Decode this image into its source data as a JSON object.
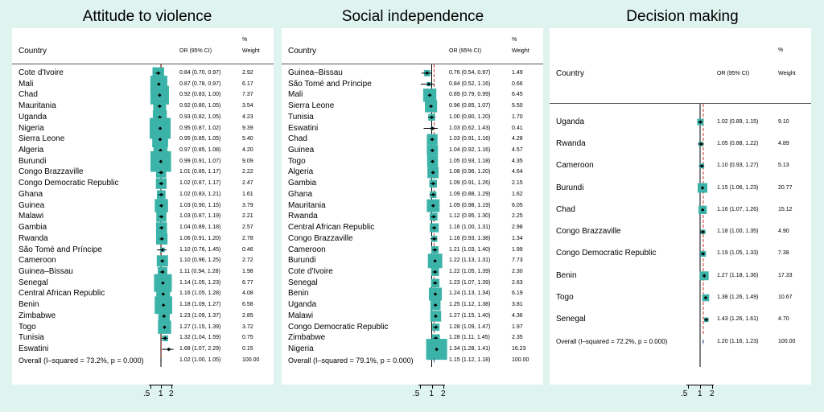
{
  "chart_data": [
    {
      "type": "forest",
      "title": "Attitude to violence",
      "headers": {
        "country": "Country",
        "or": "OR (95% CI)",
        "pct": "%",
        "weight": "Weight"
      },
      "axis": {
        "ticks": [
          ".5",
          "1",
          "2"
        ]
      },
      "rows": [
        {
          "country": "Cote d'Ivoire",
          "or": 0.84,
          "lo": 0.7,
          "hi": 0.97,
          "ci": "0.84 (0.70, 0.97)",
          "weight": "2.92"
        },
        {
          "country": "Mali",
          "or": 0.87,
          "lo": 0.78,
          "hi": 0.97,
          "ci": "0.87 (0.78, 0.97)",
          "weight": "6.17"
        },
        {
          "country": "Chad",
          "or": 0.92,
          "lo": 0.83,
          "hi": 1.0,
          "ci": "0.92 (0.83, 1.00)",
          "weight": "7.37"
        },
        {
          "country": "Mauritania",
          "or": 0.92,
          "lo": 0.8,
          "hi": 1.05,
          "ci": "0.92 (0.80, 1.05)",
          "weight": "3.54"
        },
        {
          "country": "Uganda",
          "or": 0.93,
          "lo": 0.82,
          "hi": 1.05,
          "ci": "0.93 (0.82, 1.05)",
          "weight": "4.23"
        },
        {
          "country": "Nigeria",
          "or": 0.95,
          "lo": 0.87,
          "hi": 1.02,
          "ci": "0.95 (0.87, 1.02)",
          "weight": "9.39"
        },
        {
          "country": "Sierra Leone",
          "or": 0.95,
          "lo": 0.85,
          "hi": 1.05,
          "ci": "0.95 (0.85, 1.05)",
          "weight": "5.40"
        },
        {
          "country": "Algeria",
          "or": 0.97,
          "lo": 0.85,
          "hi": 1.08,
          "ci": "0.97 (0.85, 1.08)",
          "weight": "4.20"
        },
        {
          "country": "Burundi",
          "or": 0.99,
          "lo": 0.91,
          "hi": 1.07,
          "ci": "0.99 (0.91, 1.07)",
          "weight": "9.09"
        },
        {
          "country": "Congo Brazzaville",
          "or": 1.01,
          "lo": 0.85,
          "hi": 1.17,
          "ci": "1.01 (0.85, 1.17)",
          "weight": "2.22"
        },
        {
          "country": "Congo Democratic Republic",
          "or": 1.02,
          "lo": 0.87,
          "hi": 1.17,
          "ci": "1.02 (0.87, 1.17)",
          "weight": "2.47"
        },
        {
          "country": "Ghana",
          "or": 1.02,
          "lo": 0.83,
          "hi": 1.21,
          "ci": "1.02 (0.83, 1.21)",
          "weight": "1.61"
        },
        {
          "country": "Guinea",
          "or": 1.03,
          "lo": 0.9,
          "hi": 1.15,
          "ci": "1.03 (0.90, 1.15)",
          "weight": "3.79"
        },
        {
          "country": "Malawi",
          "or": 1.03,
          "lo": 0.87,
          "hi": 1.19,
          "ci": "1.03 (0.87, 1.19)",
          "weight": "2.21"
        },
        {
          "country": "Gambia",
          "or": 1.04,
          "lo": 0.89,
          "hi": 1.18,
          "ci": "1.04 (0.89, 1.18)",
          "weight": "2.57"
        },
        {
          "country": "Rwanda",
          "or": 1.06,
          "lo": 0.91,
          "hi": 1.2,
          "ci": "1.06 (0.91, 1.20)",
          "weight": "2.78"
        },
        {
          "country": "São Tomé and Príncipe",
          "or": 1.1,
          "lo": 0.76,
          "hi": 1.45,
          "ci": "1.10 (0.76, 1.45)",
          "weight": "0.46"
        },
        {
          "country": "Cameroon",
          "or": 1.1,
          "lo": 0.96,
          "hi": 1.25,
          "ci": "1.10 (0.96, 1.25)",
          "weight": "2.72"
        },
        {
          "country": "Guinea–Bissau",
          "or": 1.11,
          "lo": 0.94,
          "hi": 1.28,
          "ci": "1.11 (0.94, 1.28)",
          "weight": "1.98"
        },
        {
          "country": "Senegal",
          "or": 1.14,
          "lo": 1.05,
          "hi": 1.23,
          "ci": "1.14 (1.05, 1.23)",
          "weight": "6.77"
        },
        {
          "country": "Central African Republic",
          "or": 1.16,
          "lo": 1.05,
          "hi": 1.28,
          "ci": "1.16 (1.05, 1.28)",
          "weight": "4.08"
        },
        {
          "country": "Benin",
          "or": 1.18,
          "lo": 1.09,
          "hi": 1.27,
          "ci": "1.18 (1.09, 1.27)",
          "weight": "6.58"
        },
        {
          "country": "Zimbabwe",
          "or": 1.23,
          "lo": 1.09,
          "hi": 1.37,
          "ci": "1.23 (1.09, 1.37)",
          "weight": "2.85"
        },
        {
          "country": "Togo",
          "or": 1.27,
          "lo": 1.15,
          "hi": 1.39,
          "ci": "1.27 (1.15, 1.39)",
          "weight": "3.72"
        },
        {
          "country": "Tunisia",
          "or": 1.32,
          "lo": 1.04,
          "hi": 1.59,
          "ci": "1.32 (1.04, 1.59)",
          "weight": "0.75"
        },
        {
          "country": "Eswatini",
          "or": 1.68,
          "lo": 1.07,
          "hi": 2.29,
          "ci": "1.68 (1.07, 2.29)",
          "weight": "0.15"
        }
      ],
      "overall": {
        "label": "Overall  (I–squared = 73.2%, p = 0.000)",
        "or": 1.02,
        "lo": 1.0,
        "hi": 1.05,
        "ci": "1.02 (1.00, 1.05)",
        "weight": "100.00"
      }
    },
    {
      "type": "forest",
      "title": "Social independence",
      "headers": {
        "country": "Country",
        "or": "OR (95% CI)",
        "pct": "%",
        "weight": "Weight"
      },
      "axis": {
        "ticks": [
          ".5",
          "1",
          "2"
        ]
      },
      "rows": [
        {
          "country": "Guinea–Bissau",
          "or": 0.76,
          "lo": 0.54,
          "hi": 0.97,
          "ci": "0.76 (0.54, 0.97)",
          "weight": "1.49"
        },
        {
          "country": "São Tomé and Príncipe",
          "or": 0.84,
          "lo": 0.52,
          "hi": 1.16,
          "ci": "0.84 (0.52, 1.16)",
          "weight": "0.66"
        },
        {
          "country": "Mali",
          "or": 0.89,
          "lo": 0.79,
          "hi": 0.99,
          "ci": "0.89 (0.79, 0.99)",
          "weight": "6.45"
        },
        {
          "country": "Sierra Leone",
          "or": 0.96,
          "lo": 0.85,
          "hi": 1.07,
          "ci": "0.96 (0.85, 1.07)",
          "weight": "5.50"
        },
        {
          "country": "Tunisia",
          "or": 1.0,
          "lo": 0.8,
          "hi": 1.2,
          "ci": "1.00 (0.80, 1.20)",
          "weight": "1.70"
        },
        {
          "country": "Eswatini",
          "or": 1.03,
          "lo": 0.62,
          "hi": 1.43,
          "ci": "1.03 (0.62, 1.43)",
          "weight": "0.41"
        },
        {
          "country": "Chad",
          "or": 1.03,
          "lo": 0.91,
          "hi": 1.16,
          "ci": "1.03 (0.91, 1.16)",
          "weight": "4.28"
        },
        {
          "country": "Guinea",
          "or": 1.04,
          "lo": 0.92,
          "hi": 1.16,
          "ci": "1.04 (0.92, 1.16)",
          "weight": "4.57"
        },
        {
          "country": "Togo",
          "or": 1.05,
          "lo": 0.93,
          "hi": 1.18,
          "ci": "1.05 (0.93, 1.18)",
          "weight": "4.35"
        },
        {
          "country": "Algeria",
          "or": 1.08,
          "lo": 0.96,
          "hi": 1.2,
          "ci": "1.08 (0.96, 1.20)",
          "weight": "4.64"
        },
        {
          "country": "Gambia",
          "or": 1.09,
          "lo": 0.91,
          "hi": 1.26,
          "ci": "1.09 (0.91, 1.26)",
          "weight": "2.15"
        },
        {
          "country": "Ghana",
          "or": 1.09,
          "lo": 0.88,
          "hi": 1.29,
          "ci": "1.09 (0.88, 1.29)",
          "weight": "1.62"
        },
        {
          "country": "Mauritania",
          "or": 1.09,
          "lo": 0.98,
          "hi": 1.19,
          "ci": "1.09 (0.98, 1.19)",
          "weight": "6.05"
        },
        {
          "country": "Rwanda",
          "or": 1.12,
          "lo": 0.95,
          "hi": 1.3,
          "ci": "1.12 (0.95, 1.30)",
          "weight": "2.25"
        },
        {
          "country": "Central African Republic",
          "or": 1.16,
          "lo": 1.0,
          "hi": 1.31,
          "ci": "1.16 (1.00, 1.31)",
          "weight": "2.98"
        },
        {
          "country": "Congo Brazzaville",
          "or": 1.16,
          "lo": 0.93,
          "hi": 1.38,
          "ci": "1.16 (0.93, 1.38)",
          "weight": "1.34"
        },
        {
          "country": "Cameroon",
          "or": 1.21,
          "lo": 1.03,
          "hi": 1.4,
          "ci": "1.21 (1.03, 1.40)",
          "weight": "1.99"
        },
        {
          "country": "Burundi",
          "or": 1.22,
          "lo": 1.13,
          "hi": 1.31,
          "ci": "1.22 (1.13, 1.31)",
          "weight": "7.73"
        },
        {
          "country": "Cote d'Ivoire",
          "or": 1.22,
          "lo": 1.05,
          "hi": 1.39,
          "ci": "1.22 (1.05, 1.39)",
          "weight": "2.30"
        },
        {
          "country": "Senegal",
          "or": 1.23,
          "lo": 1.07,
          "hi": 1.39,
          "ci": "1.23 (1.07, 1.39)",
          "weight": "2.63"
        },
        {
          "country": "Benin",
          "or": 1.24,
          "lo": 1.13,
          "hi": 1.34,
          "ci": "1.24 (1.13, 1.34)",
          "weight": "6.19"
        },
        {
          "country": "Uganda",
          "or": 1.25,
          "lo": 1.12,
          "hi": 1.38,
          "ci": "1.25 (1.12, 1.38)",
          "weight": "3.81"
        },
        {
          "country": "Malawi",
          "or": 1.27,
          "lo": 1.15,
          "hi": 1.4,
          "ci": "1.27 (1.15, 1.40)",
          "weight": "4.36"
        },
        {
          "country": "Congo Democratic Republic",
          "or": 1.28,
          "lo": 1.09,
          "hi": 1.47,
          "ci": "1.28 (1.09, 1.47)",
          "weight": "1.97"
        },
        {
          "country": "Zimbabwe",
          "or": 1.28,
          "lo": 1.11,
          "hi": 1.45,
          "ci": "1.28 (1.11, 1.45)",
          "weight": "2.35"
        },
        {
          "country": "Nigeria",
          "or": 1.34,
          "lo": 1.28,
          "hi": 1.41,
          "ci": "1.34 (1.28, 1.41)",
          "weight": "16.23"
        }
      ],
      "overall": {
        "label": "Overall  (I–squared = 79.1%, p = 0.000)",
        "or": 1.15,
        "lo": 1.12,
        "hi": 1.18,
        "ci": "1.15 (1.12, 1.18)",
        "weight": "100.00"
      }
    },
    {
      "type": "forest",
      "title": "Decision making",
      "headers": {
        "country": "Country",
        "or": "OR (95% CI)",
        "pct": "%",
        "weight": "Weight"
      },
      "axis": {
        "ticks": [
          ".5",
          "1",
          "2"
        ]
      },
      "rows": [
        {
          "country": "Uganda",
          "or": 1.02,
          "lo": 0.89,
          "hi": 1.15,
          "ci": "1.02 (0.89, 1.15)",
          "weight": "9.10"
        },
        {
          "country": "Rwanda",
          "or": 1.05,
          "lo": 0.88,
          "hi": 1.22,
          "ci": "1.05 (0.88, 1.22)",
          "weight": "4.89"
        },
        {
          "country": "Cameroon",
          "or": 1.1,
          "lo": 0.93,
          "hi": 1.27,
          "ci": "1.10 (0.93, 1.27)",
          "weight": "5.13"
        },
        {
          "country": "Burundi",
          "or": 1.15,
          "lo": 1.06,
          "hi": 1.23,
          "ci": "1.15 (1.06, 1.23)",
          "weight": "20.77"
        },
        {
          "country": "Chad",
          "or": 1.16,
          "lo": 1.07,
          "hi": 1.26,
          "ci": "1.16 (1.07, 1.26)",
          "weight": "15.12"
        },
        {
          "country": "Congo Brazzaville",
          "or": 1.18,
          "lo": 1.0,
          "hi": 1.35,
          "ci": "1.18 (1.00, 1.35)",
          "weight": "4.90"
        },
        {
          "country": "Congo Democratic Republic",
          "or": 1.19,
          "lo": 1.05,
          "hi": 1.33,
          "ci": "1.19 (1.05, 1.33)",
          "weight": "7.38"
        },
        {
          "country": "Benin",
          "or": 1.27,
          "lo": 1.18,
          "hi": 1.36,
          "ci": "1.27 (1.18, 1.36)",
          "weight": "17.33"
        },
        {
          "country": "Togo",
          "or": 1.38,
          "lo": 1.26,
          "hi": 1.49,
          "ci": "1.38 (1.26, 1.49)",
          "weight": "10.67"
        },
        {
          "country": "Senegal",
          "or": 1.43,
          "lo": 1.26,
          "hi": 1.61,
          "ci": "1.43 (1.26, 1.61)",
          "weight": "4.70"
        }
      ],
      "overall": {
        "label": "Overall  (I–squared = 72.2%, p = 0.000)",
        "or": 1.2,
        "lo": 1.16,
        "hi": 1.23,
        "ci": "1.20 (1.16, 1.23)",
        "weight": "100.00"
      }
    }
  ],
  "colors": {
    "box": "#3bb3a8",
    "overall_line": "#c0392b",
    "background": "#dff3ef"
  }
}
